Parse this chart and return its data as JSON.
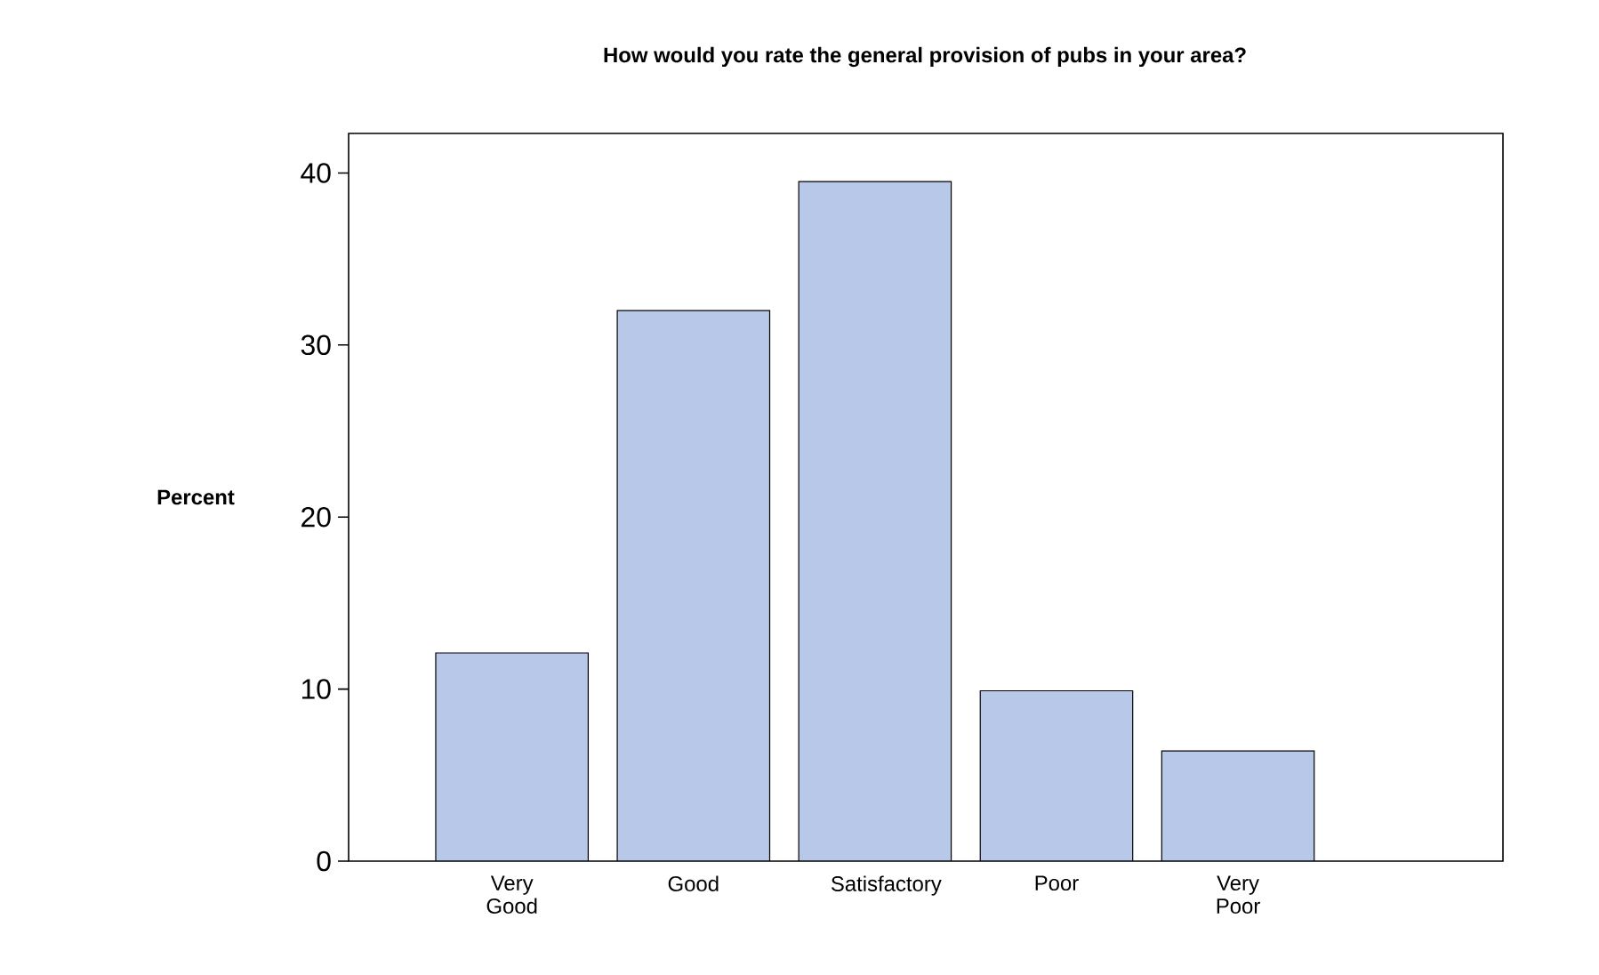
{
  "chart_data": {
    "type": "bar",
    "title": "How would you rate the general provision of pubs in your area?",
    "ylabel": "Percent",
    "categories": [
      "Very Good",
      "Good",
      "Satisfactory",
      "Poor",
      "Very Poor"
    ],
    "values": [
      12.1,
      32.0,
      39.5,
      9.9,
      6.4
    ],
    "color": "#b7c8e8",
    "ylim": [
      0,
      42.3
    ],
    "yticks": [
      0,
      10,
      20,
      30,
      40
    ],
    "grid": false
  }
}
